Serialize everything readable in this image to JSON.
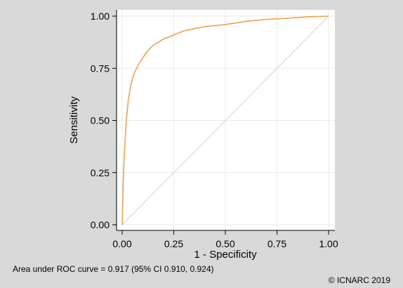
{
  "chart_data": {
    "type": "line",
    "title": "",
    "xlabel": "1 - Specificity",
    "ylabel": "Sensitivity",
    "xlim": [
      0,
      1
    ],
    "ylim": [
      0,
      1
    ],
    "x_ticks": [
      "0.00",
      "0.25",
      "0.50",
      "0.75",
      "1.00"
    ],
    "y_ticks": [
      "0.00",
      "0.25",
      "0.50",
      "0.75",
      "1.00"
    ],
    "grid": true,
    "legend": "none",
    "series": [
      {
        "color": "#f0a050",
        "x": [
          0.0,
          0.002,
          0.005,
          0.01,
          0.015,
          0.02,
          0.03,
          0.04,
          0.05,
          0.06,
          0.08,
          0.1,
          0.12,
          0.15,
          0.2,
          0.25,
          0.3,
          0.35,
          0.4,
          0.5,
          0.6,
          0.7,
          0.8,
          0.9,
          1.0
        ],
        "y": [
          0.0,
          0.08,
          0.2,
          0.33,
          0.42,
          0.5,
          0.6,
          0.66,
          0.7,
          0.73,
          0.77,
          0.8,
          0.83,
          0.86,
          0.89,
          0.91,
          0.93,
          0.94,
          0.95,
          0.96,
          0.975,
          0.985,
          0.99,
          0.997,
          1.0
        ]
      },
      {
        "color": "#d3d3d3",
        "x": [
          0,
          1
        ],
        "y": [
          0,
          1
        ]
      }
    ]
  },
  "footer": {
    "auc_text": "Area under ROC curve = 0.917 (95% CI 0.910, 0.924)",
    "credit": "© ICNARC 2019"
  }
}
